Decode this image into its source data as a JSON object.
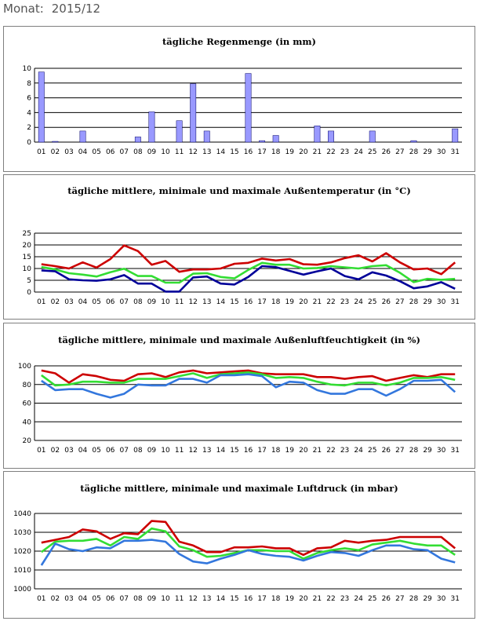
{
  "header": {
    "label": "Monat:",
    "value": "2015/12"
  },
  "days": [
    "01",
    "02",
    "03",
    "04",
    "05",
    "06",
    "07",
    "08",
    "09",
    "10",
    "11",
    "12",
    "13",
    "14",
    "15",
    "16",
    "17",
    "18",
    "19",
    "20",
    "21",
    "22",
    "23",
    "24",
    "25",
    "26",
    "27",
    "28",
    "29",
    "30",
    "31"
  ],
  "colors": {
    "bar": "#9999ff",
    "bar_edge": "#000066",
    "max": "#cc0000",
    "mean": "#33dd33",
    "min_temp": "#000099",
    "min_other": "#3377dd",
    "grid": "#000000"
  },
  "chart_data": [
    {
      "type": "bar",
      "title": "tägliche Regenmenge (in mm)",
      "ylim": [
        0,
        10
      ],
      "yticks": [
        0,
        2,
        4,
        6,
        8,
        10
      ],
      "series": [
        {
          "values": [
            9.5,
            0.1,
            0,
            1.5,
            0,
            0,
            0,
            0.7,
            4.1,
            0,
            2.9,
            7.9,
            1.5,
            0,
            0,
            9.3,
            0.2,
            0.9,
            0,
            0,
            2.2,
            1.5,
            0,
            0,
            1.5,
            0,
            0,
            0.2,
            0,
            0,
            1.8
          ]
        }
      ]
    },
    {
      "type": "line",
      "title": "tägliche mittlere, minimale und maximale Außentemperatur (in °C)",
      "ylim": [
        0,
        25
      ],
      "yticks": [
        0,
        5,
        10,
        15,
        20,
        25
      ],
      "series": [
        {
          "values": [
            11.8,
            11,
            10,
            12.6,
            10.4,
            14,
            19.8,
            17.4,
            11.6,
            13.2,
            8.6,
            9.6,
            9.6,
            10,
            12,
            12.4,
            14.2,
            13.4,
            14,
            11.8,
            11.6,
            12.6,
            14.4,
            15.6,
            13,
            16.5,
            12.6,
            9.6,
            10,
            7.6,
            12.6
          ]
        },
        {
          "values": [
            10.6,
            9.6,
            8,
            7.4,
            6.6,
            8.4,
            9.9,
            6.8,
            6.8,
            4,
            4,
            7.8,
            8,
            6.4,
            5.8,
            9.4,
            12.4,
            11.6,
            11.6,
            10,
            10.2,
            11,
            10.5,
            10,
            11,
            11.4,
            8.2,
            4.2,
            5.6,
            5.2,
            5.6
          ]
        },
        {
          "values": [
            9.2,
            8.8,
            5.4,
            5,
            4.8,
            5.4,
            7.2,
            3.6,
            3.6,
            0.2,
            0.2,
            6.2,
            6.6,
            3.6,
            3.2,
            6.4,
            11,
            10.6,
            9,
            7.4,
            8.8,
            10,
            6.8,
            5.4,
            8.4,
            7,
            4.6,
            1.6,
            2.4,
            4.2,
            1.4
          ]
        }
      ]
    },
    {
      "type": "line",
      "title": "tägliche mittlere, minimale und maximale Außenluftfeuchtigkeit (in %)",
      "ylim": [
        20,
        100
      ],
      "yticks": [
        20,
        40,
        60,
        80,
        100
      ],
      "series": [
        {
          "values": [
            95,
            92,
            82,
            91,
            89,
            85,
            84,
            91,
            92,
            88,
            93,
            95,
            92,
            93,
            94,
            95,
            92,
            91,
            91,
            91,
            88,
            88,
            86,
            88,
            89,
            84,
            87,
            90,
            88,
            91,
            91
          ]
        },
        {
          "values": [
            90,
            79,
            80,
            83,
            83,
            82,
            82,
            86,
            86,
            86,
            89,
            92,
            87,
            91,
            92,
            93,
            91,
            87,
            88,
            87,
            83,
            80,
            79,
            82,
            82,
            79,
            82,
            87,
            87,
            88,
            85
          ]
        },
        {
          "values": [
            84,
            74,
            75,
            75,
            70,
            66,
            70,
            80,
            79,
            79,
            86,
            86,
            82,
            90,
            90,
            91,
            89,
            77,
            83,
            82,
            74,
            70,
            70,
            75,
            75,
            68,
            75,
            84,
            84,
            85,
            72
          ]
        }
      ]
    },
    {
      "type": "line",
      "title": "tägliche mittlere, minimale und maximale Luftdruck (in mbar)",
      "ylim": [
        1000,
        1040
      ],
      "yticks": [
        1000,
        1010,
        1020,
        1030,
        1040
      ],
      "series": [
        {
          "values": [
            1024.5,
            1026,
            1027.5,
            1031.5,
            1030.5,
            1026.5,
            1029.5,
            1029,
            1036,
            1035.5,
            1025,
            1023,
            1019.5,
            1019.5,
            1022,
            1022,
            1022.5,
            1021.5,
            1021.5,
            1018,
            1021.5,
            1022,
            1025.5,
            1024.5,
            1025.5,
            1026,
            1027.5,
            1027.5,
            1027.5,
            1027.5,
            1021.5
          ]
        },
        {
          "values": [
            1019.5,
            1025,
            1025.5,
            1025.5,
            1026.5,
            1023,
            1027.5,
            1026.5,
            1032,
            1030.5,
            1022.5,
            1020.5,
            1017,
            1017.5,
            1019,
            1020.5,
            1020.5,
            1020,
            1020,
            1016,
            1019,
            1020.5,
            1021.5,
            1020.5,
            1023.5,
            1024.5,
            1025.5,
            1024,
            1023,
            1023,
            1018
          ]
        },
        {
          "values": [
            1012.5,
            1024,
            1021,
            1020,
            1022,
            1021.5,
            1025.5,
            1025.5,
            1026,
            1025,
            1018.5,
            1014.5,
            1013.5,
            1016,
            1018,
            1020.5,
            1018.5,
            1017.5,
            1017,
            1015,
            1017.5,
            1019.5,
            1019,
            1017.5,
            1020.5,
            1023,
            1023,
            1021,
            1020.5,
            1016,
            1014
          ]
        }
      ]
    }
  ]
}
